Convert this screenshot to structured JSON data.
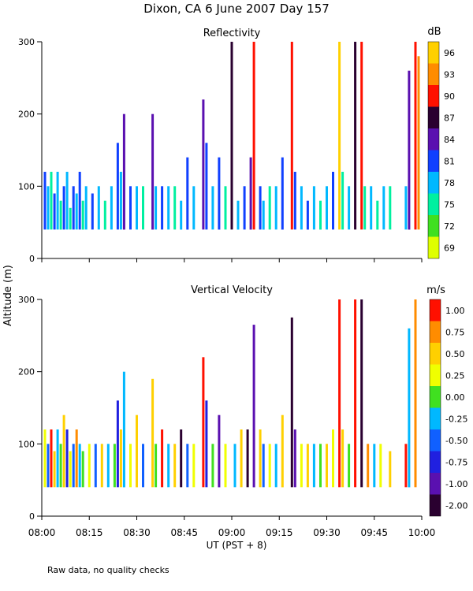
{
  "figure": {
    "title": "Dixon, CA  6 June 2007  Day 157",
    "footnote": "Raw data, no quality checks",
    "shared_ylabel": "Altitude (m)"
  },
  "chart_data": [
    {
      "type": "heatmap",
      "title": "Reflectivity",
      "xlabel": "UT  (PST + 8)",
      "ylabel": "Altitude (m)",
      "xlim": [
        "08:00",
        "10:00"
      ],
      "ylim": [
        0,
        300
      ],
      "x_ticks": [
        "08:00",
        "08:15",
        "08:30",
        "08:45",
        "09:00",
        "09:15",
        "09:30",
        "09:45",
        "10:00"
      ],
      "y_ticks": [
        0,
        100,
        200,
        300
      ],
      "colorbar": {
        "unit": "dB",
        "ticks": [
          69,
          72,
          75,
          78,
          81,
          84,
          87,
          90,
          93,
          96
        ],
        "colors": [
          "#dfff00",
          "#40e020",
          "#00f0a0",
          "#00b8ff",
          "#1040ff",
          "#5a10b0",
          "#2a0030",
          "#ff1000",
          "#ff8c00",
          "#ffd000"
        ]
      },
      "base_altitude_m": 40,
      "events": [
        {
          "t": "08:01",
          "top": 120,
          "c": 81
        },
        {
          "t": "08:02",
          "top": 100,
          "c": 78
        },
        {
          "t": "08:03",
          "top": 120,
          "c": 75
        },
        {
          "t": "08:04",
          "top": 90,
          "c": 81
        },
        {
          "t": "08:05",
          "top": 120,
          "c": 78
        },
        {
          "t": "08:06",
          "top": 80,
          "c": 75
        },
        {
          "t": "08:07",
          "top": 100,
          "c": 81
        },
        {
          "t": "08:08",
          "top": 120,
          "c": 78
        },
        {
          "t": "08:09",
          "top": 70,
          "c": 75
        },
        {
          "t": "08:10",
          "top": 100,
          "c": 81
        },
        {
          "t": "08:11",
          "top": 90,
          "c": 78
        },
        {
          "t": "08:12",
          "top": 120,
          "c": 81
        },
        {
          "t": "08:13",
          "top": 80,
          "c": 75
        },
        {
          "t": "08:14",
          "top": 100,
          "c": 78
        },
        {
          "t": "08:16",
          "top": 90,
          "c": 81
        },
        {
          "t": "08:18",
          "top": 100,
          "c": 78
        },
        {
          "t": "08:20",
          "top": 80,
          "c": 75
        },
        {
          "t": "08:22",
          "top": 100,
          "c": 78
        },
        {
          "t": "08:24",
          "top": 160,
          "c": 81
        },
        {
          "t": "08:25",
          "top": 120,
          "c": 78
        },
        {
          "t": "08:26",
          "top": 200,
          "c": 84
        },
        {
          "t": "08:28",
          "top": 100,
          "c": 81
        },
        {
          "t": "08:30",
          "top": 100,
          "c": 78
        },
        {
          "t": "08:32",
          "top": 100,
          "c": 75
        },
        {
          "t": "08:35",
          "top": 200,
          "c": 84
        },
        {
          "t": "08:36",
          "top": 100,
          "c": 78
        },
        {
          "t": "08:38",
          "top": 100,
          "c": 81
        },
        {
          "t": "08:40",
          "top": 100,
          "c": 78
        },
        {
          "t": "08:42",
          "top": 100,
          "c": 75
        },
        {
          "t": "08:44",
          "top": 80,
          "c": 78
        },
        {
          "t": "08:46",
          "top": 140,
          "c": 81
        },
        {
          "t": "08:48",
          "top": 100,
          "c": 78
        },
        {
          "t": "08:51",
          "top": 220,
          "c": 84
        },
        {
          "t": "08:52",
          "top": 160,
          "c": 81
        },
        {
          "t": "08:54",
          "top": 100,
          "c": 78
        },
        {
          "t": "08:56",
          "top": 140,
          "c": 81
        },
        {
          "t": "08:58",
          "top": 100,
          "c": 75
        },
        {
          "t": "09:00",
          "top": 300,
          "c": 87
        },
        {
          "t": "09:02",
          "top": 80,
          "c": 78
        },
        {
          "t": "09:04",
          "top": 100,
          "c": 81
        },
        {
          "t": "09:06",
          "top": 140,
          "c": 84
        },
        {
          "t": "09:07",
          "top": 300,
          "c": 90
        },
        {
          "t": "09:09",
          "top": 100,
          "c": 81
        },
        {
          "t": "09:10",
          "top": 80,
          "c": 78
        },
        {
          "t": "09:12",
          "top": 100,
          "c": 75
        },
        {
          "t": "09:14",
          "top": 100,
          "c": 78
        },
        {
          "t": "09:16",
          "top": 140,
          "c": 81
        },
        {
          "t": "09:19",
          "top": 300,
          "c": 90
        },
        {
          "t": "09:20",
          "top": 120,
          "c": 81
        },
        {
          "t": "09:22",
          "top": 100,
          "c": 78
        },
        {
          "t": "09:24",
          "top": 80,
          "c": 81
        },
        {
          "t": "09:26",
          "top": 100,
          "c": 78
        },
        {
          "t": "09:28",
          "top": 80,
          "c": 75
        },
        {
          "t": "09:30",
          "top": 100,
          "c": 78
        },
        {
          "t": "09:32",
          "top": 120,
          "c": 81
        },
        {
          "t": "09:34",
          "top": 300,
          "c": 96
        },
        {
          "t": "09:35",
          "top": 120,
          "c": 75
        },
        {
          "t": "09:37",
          "top": 100,
          "c": 78
        },
        {
          "t": "09:39",
          "top": 300,
          "c": 87
        },
        {
          "t": "09:41",
          "top": 300,
          "c": 90
        },
        {
          "t": "09:42",
          "top": 100,
          "c": 75
        },
        {
          "t": "09:44",
          "top": 100,
          "c": 78
        },
        {
          "t": "09:46",
          "top": 80,
          "c": 75
        },
        {
          "t": "09:48",
          "top": 100,
          "c": 78
        },
        {
          "t": "09:50",
          "top": 100,
          "c": 75
        },
        {
          "t": "09:55",
          "top": 100,
          "c": 78
        },
        {
          "t": "09:56",
          "top": 260,
          "c": 84
        },
        {
          "t": "09:58",
          "top": 300,
          "c": 90
        },
        {
          "t": "09:59",
          "top": 280,
          "c": 93
        }
      ]
    },
    {
      "type": "heatmap",
      "title": "Vertical Velocity",
      "xlabel": "UT  (PST + 8)",
      "ylabel": "Altitude (m)",
      "xlim": [
        "08:00",
        "10:00"
      ],
      "ylim": [
        0,
        300
      ],
      "x_ticks": [
        "08:00",
        "08:15",
        "08:30",
        "08:45",
        "09:00",
        "09:15",
        "09:30",
        "09:45",
        "10:00"
      ],
      "y_ticks": [
        0,
        100,
        200,
        300
      ],
      "colorbar": {
        "unit": "m/s",
        "ticks": [
          "1.00",
          "0.75",
          "0.50",
          "0.25",
          "0.00",
          "-0.25",
          "-0.50",
          "-0.75",
          "-1.00",
          "-2.00"
        ],
        "colors": [
          "#ff1000",
          "#ff8c00",
          "#ffd000",
          "#f0ff00",
          "#40e020",
          "#00b8ff",
          "#1060ff",
          "#2020e0",
          "#5a10b0",
          "#2a0030"
        ]
      },
      "base_altitude_m": 40,
      "events": [
        {
          "t": "08:01",
          "top": 120,
          "c": "0.25"
        },
        {
          "t": "08:02",
          "top": 100,
          "c": "-0.50"
        },
        {
          "t": "08:03",
          "top": 120,
          "c": "1.00"
        },
        {
          "t": "08:04",
          "top": 90,
          "c": "0.50"
        },
        {
          "t": "08:05",
          "top": 120,
          "c": "-0.25"
        },
        {
          "t": "08:06",
          "top": 100,
          "c": "0.00"
        },
        {
          "t": "08:07",
          "top": 140,
          "c": "0.50"
        },
        {
          "t": "08:08",
          "top": 120,
          "c": "-0.75"
        },
        {
          "t": "08:09",
          "top": 90,
          "c": "0.25"
        },
        {
          "t": "08:10",
          "top": 100,
          "c": "-0.50"
        },
        {
          "t": "08:11",
          "top": 120,
          "c": "0.75"
        },
        {
          "t": "08:12",
          "top": 100,
          "c": "-0.25"
        },
        {
          "t": "08:13",
          "top": 90,
          "c": "0.00"
        },
        {
          "t": "08:15",
          "top": 100,
          "c": "0.25"
        },
        {
          "t": "08:17",
          "top": 100,
          "c": "-0.50"
        },
        {
          "t": "08:19",
          "top": 100,
          "c": "0.50"
        },
        {
          "t": "08:21",
          "top": 100,
          "c": "-0.25"
        },
        {
          "t": "08:23",
          "top": 100,
          "c": "0.00"
        },
        {
          "t": "08:24",
          "top": 160,
          "c": "-0.75"
        },
        {
          "t": "08:25",
          "top": 120,
          "c": "0.50"
        },
        {
          "t": "08:26",
          "top": 200,
          "c": "-0.25"
        },
        {
          "t": "08:28",
          "top": 100,
          "c": "0.25"
        },
        {
          "t": "08:30",
          "top": 140,
          "c": "0.50"
        },
        {
          "t": "08:32",
          "top": 100,
          "c": "-0.50"
        },
        {
          "t": "08:35",
          "top": 190,
          "c": "0.50"
        },
        {
          "t": "08:36",
          "top": 100,
          "c": "0.00"
        },
        {
          "t": "08:38",
          "top": 120,
          "c": "1.00"
        },
        {
          "t": "08:40",
          "top": 100,
          "c": "-0.25"
        },
        {
          "t": "08:42",
          "top": 100,
          "c": "0.50"
        },
        {
          "t": "08:44",
          "top": 120,
          "c": "-2.00"
        },
        {
          "t": "08:46",
          "top": 100,
          "c": "-0.50"
        },
        {
          "t": "08:48",
          "top": 100,
          "c": "0.25"
        },
        {
          "t": "08:51",
          "top": 220,
          "c": "1.00"
        },
        {
          "t": "08:52",
          "top": 160,
          "c": "-0.75"
        },
        {
          "t": "08:54",
          "top": 100,
          "c": "0.00"
        },
        {
          "t": "08:56",
          "top": 140,
          "c": "-1.00"
        },
        {
          "t": "08:58",
          "top": 100,
          "c": "0.25"
        },
        {
          "t": "09:01",
          "top": 100,
          "c": "-0.25"
        },
        {
          "t": "09:03",
          "top": 120,
          "c": "0.50"
        },
        {
          "t": "09:05",
          "top": 120,
          "c": "-2.00"
        },
        {
          "t": "09:07",
          "top": 265,
          "c": "-1.00"
        },
        {
          "t": "09:09",
          "top": 120,
          "c": "0.50"
        },
        {
          "t": "09:10",
          "top": 100,
          "c": "-0.50"
        },
        {
          "t": "09:12",
          "top": 100,
          "c": "0.25"
        },
        {
          "t": "09:14",
          "top": 100,
          "c": "-0.25"
        },
        {
          "t": "09:16",
          "top": 140,
          "c": "0.50"
        },
        {
          "t": "09:19",
          "top": 275,
          "c": "-2.00"
        },
        {
          "t": "09:20",
          "top": 120,
          "c": "-1.00"
        },
        {
          "t": "09:22",
          "top": 100,
          "c": "0.25"
        },
        {
          "t": "09:24",
          "top": 100,
          "c": "0.50"
        },
        {
          "t": "09:26",
          "top": 100,
          "c": "-0.25"
        },
        {
          "t": "09:28",
          "top": 100,
          "c": "0.00"
        },
        {
          "t": "09:30",
          "top": 100,
          "c": "0.50"
        },
        {
          "t": "09:32",
          "top": 120,
          "c": "0.25"
        },
        {
          "t": "09:34",
          "top": 300,
          "c": "1.00"
        },
        {
          "t": "09:35",
          "top": 120,
          "c": "0.50"
        },
        {
          "t": "09:37",
          "top": 100,
          "c": "0.00"
        },
        {
          "t": "09:39",
          "top": 300,
          "c": "1.00"
        },
        {
          "t": "09:41",
          "top": 300,
          "c": "-2.00"
        },
        {
          "t": "09:43",
          "top": 100,
          "c": "0.75"
        },
        {
          "t": "09:45",
          "top": 100,
          "c": "-0.25"
        },
        {
          "t": "09:47",
          "top": 100,
          "c": "0.25"
        },
        {
          "t": "09:50",
          "top": 90,
          "c": "0.50"
        },
        {
          "t": "09:55",
          "top": 100,
          "c": "1.00"
        },
        {
          "t": "09:56",
          "top": 260,
          "c": "-0.25"
        },
        {
          "t": "09:58",
          "top": 300,
          "c": "0.75"
        }
      ]
    }
  ]
}
